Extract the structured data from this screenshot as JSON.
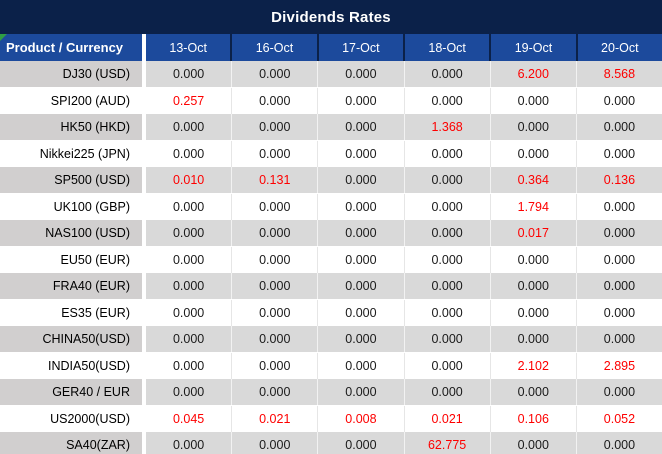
{
  "title": "Dividends Rates",
  "columns": {
    "product_header": "Product / Currency",
    "dates": [
      "13-Oct",
      "16-Oct",
      "17-Oct",
      "18-Oct",
      "19-Oct",
      "20-Oct"
    ]
  },
  "colors": {
    "title_bar_navy": "#0B2149",
    "header_blue": "#1C4A9C",
    "row_gray": "#D9D9D9",
    "product_col_gray": "#D1CFCF",
    "nonzero_red": "#FE0000",
    "text_black": "#000000",
    "corner_marker_green": "#2F9E44"
  },
  "rows": [
    {
      "product": "DJ30 (USD)",
      "values": [
        "0.000",
        "0.000",
        "0.000",
        "0.000",
        "6.200",
        "8.568"
      ],
      "red": [
        false,
        false,
        false,
        false,
        true,
        true
      ]
    },
    {
      "product": "SPI200 (AUD)",
      "values": [
        "0.257",
        "0.000",
        "0.000",
        "0.000",
        "0.000",
        "0.000"
      ],
      "red": [
        true,
        false,
        false,
        false,
        false,
        false
      ]
    },
    {
      "product": "HK50 (HKD)",
      "values": [
        "0.000",
        "0.000",
        "0.000",
        "1.368",
        "0.000",
        "0.000"
      ],
      "red": [
        false,
        false,
        false,
        true,
        false,
        false
      ]
    },
    {
      "product": "Nikkei225 (JPN)",
      "values": [
        "0.000",
        "0.000",
        "0.000",
        "0.000",
        "0.000",
        "0.000"
      ],
      "red": [
        false,
        false,
        false,
        false,
        false,
        false
      ]
    },
    {
      "product": "SP500 (USD)",
      "values": [
        "0.010",
        "0.131",
        "0.000",
        "0.000",
        "0.364",
        "0.136"
      ],
      "red": [
        true,
        true,
        false,
        false,
        true,
        true
      ]
    },
    {
      "product": "UK100 (GBP)",
      "values": [
        "0.000",
        "0.000",
        "0.000",
        "0.000",
        "1.794",
        "0.000"
      ],
      "red": [
        false,
        false,
        false,
        false,
        true,
        false
      ]
    },
    {
      "product": "NAS100 (USD)",
      "values": [
        "0.000",
        "0.000",
        "0.000",
        "0.000",
        "0.017",
        "0.000"
      ],
      "red": [
        false,
        false,
        false,
        false,
        true,
        false
      ]
    },
    {
      "product": "EU50 (EUR)",
      "values": [
        "0.000",
        "0.000",
        "0.000",
        "0.000",
        "0.000",
        "0.000"
      ],
      "red": [
        false,
        false,
        false,
        false,
        false,
        false
      ]
    },
    {
      "product": "FRA40 (EUR)",
      "values": [
        "0.000",
        "0.000",
        "0.000",
        "0.000",
        "0.000",
        "0.000"
      ],
      "red": [
        false,
        false,
        false,
        false,
        false,
        false
      ]
    },
    {
      "product": "ES35 (EUR)",
      "values": [
        "0.000",
        "0.000",
        "0.000",
        "0.000",
        "0.000",
        "0.000"
      ],
      "red": [
        false,
        false,
        false,
        false,
        false,
        false
      ]
    },
    {
      "product": "CHINA50(USD)",
      "values": [
        "0.000",
        "0.000",
        "0.000",
        "0.000",
        "0.000",
        "0.000"
      ],
      "red": [
        false,
        false,
        false,
        false,
        false,
        false
      ]
    },
    {
      "product": "INDIA50(USD)",
      "values": [
        "0.000",
        "0.000",
        "0.000",
        "0.000",
        "2.102",
        "2.895"
      ],
      "red": [
        false,
        false,
        false,
        false,
        true,
        true
      ]
    },
    {
      "product": "GER40 / EUR",
      "values": [
        "0.000",
        "0.000",
        "0.000",
        "0.000",
        "0.000",
        "0.000"
      ],
      "red": [
        false,
        false,
        false,
        false,
        false,
        false
      ]
    },
    {
      "product": "US2000(USD)",
      "values": [
        "0.045",
        "0.021",
        "0.008",
        "0.021",
        "0.106",
        "0.052"
      ],
      "red": [
        true,
        true,
        true,
        true,
        true,
        true
      ]
    },
    {
      "product": "SA40(ZAR)",
      "values": [
        "0.000",
        "0.000",
        "0.000",
        "62.775",
        "0.000",
        "0.000"
      ],
      "red": [
        false,
        false,
        false,
        true,
        false,
        false
      ]
    }
  ],
  "chart_data": {
    "type": "table",
    "title": "Dividends Rates",
    "columns": [
      "Product / Currency",
      "13-Oct",
      "16-Oct",
      "17-Oct",
      "18-Oct",
      "19-Oct",
      "20-Oct"
    ],
    "rows": [
      [
        "DJ30 (USD)",
        0.0,
        0.0,
        0.0,
        0.0,
        6.2,
        8.568
      ],
      [
        "SPI200 (AUD)",
        0.257,
        0.0,
        0.0,
        0.0,
        0.0,
        0.0
      ],
      [
        "HK50 (HKD)",
        0.0,
        0.0,
        0.0,
        1.368,
        0.0,
        0.0
      ],
      [
        "Nikkei225 (JPN)",
        0.0,
        0.0,
        0.0,
        0.0,
        0.0,
        0.0
      ],
      [
        "SP500 (USD)",
        0.01,
        0.131,
        0.0,
        0.0,
        0.364,
        0.136
      ],
      [
        "UK100 (GBP)",
        0.0,
        0.0,
        0.0,
        0.0,
        1.794,
        0.0
      ],
      [
        "NAS100 (USD)",
        0.0,
        0.0,
        0.0,
        0.0,
        0.017,
        0.0
      ],
      [
        "EU50 (EUR)",
        0.0,
        0.0,
        0.0,
        0.0,
        0.0,
        0.0
      ],
      [
        "FRA40 (EUR)",
        0.0,
        0.0,
        0.0,
        0.0,
        0.0,
        0.0
      ],
      [
        "ES35 (EUR)",
        0.0,
        0.0,
        0.0,
        0.0,
        0.0,
        0.0
      ],
      [
        "CHINA50(USD)",
        0.0,
        0.0,
        0.0,
        0.0,
        0.0,
        0.0
      ],
      [
        "INDIA50(USD)",
        0.0,
        0.0,
        0.0,
        0.0,
        2.102,
        2.895
      ],
      [
        "GER40 / EUR",
        0.0,
        0.0,
        0.0,
        0.0,
        0.0,
        0.0
      ],
      [
        "US2000(USD)",
        0.045,
        0.021,
        0.008,
        0.021,
        0.106,
        0.052
      ],
      [
        "SA40(ZAR)",
        0.0,
        0.0,
        0.0,
        62.775,
        0.0,
        0.0
      ]
    ],
    "notes": "Red-colored cells indicate non-zero dividend rates; highlighting marked in rows[].red"
  }
}
